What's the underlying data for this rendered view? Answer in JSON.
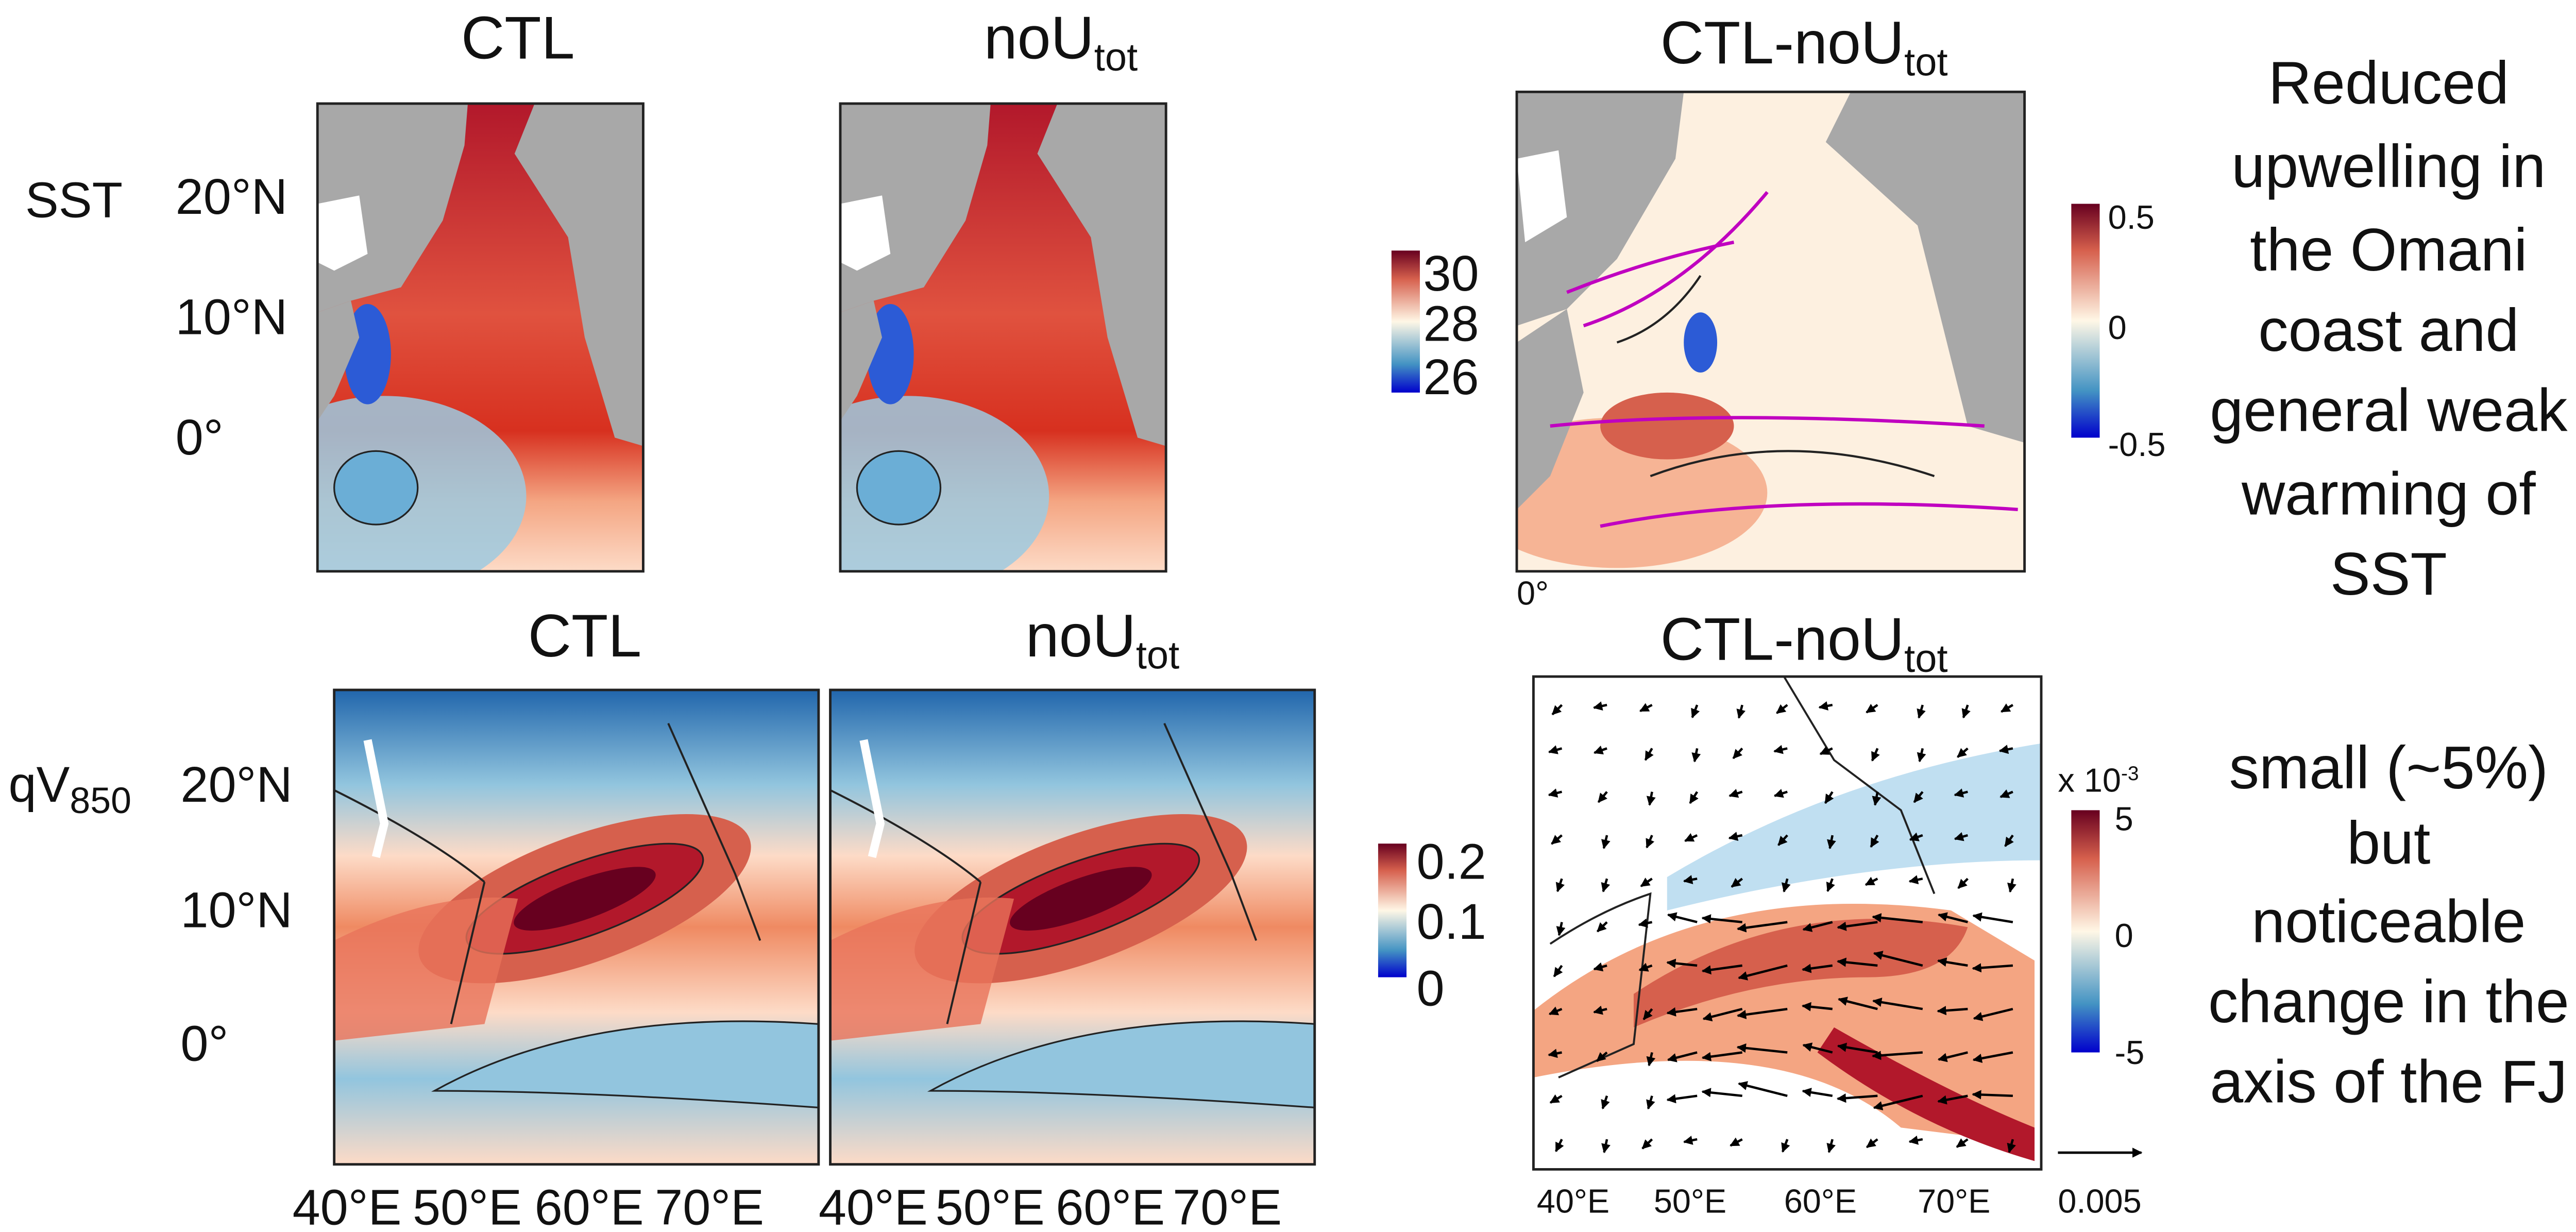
{
  "rows": [
    {
      "label": {
        "main": "SST"
      },
      "panel_titles": [
        {
          "main": "CTL"
        },
        {
          "main": "noU",
          "sub": "tot"
        },
        {
          "main": "CTL-noU",
          "sub": "tot"
        }
      ],
      "lat_labels": [
        "20°N",
        "10°N",
        "0°"
      ],
      "colorbar": [
        "30",
        "28",
        "26"
      ],
      "diff_colorbar": [
        "0.5",
        "0",
        "-0.5"
      ],
      "diff_lon_labels": [
        "0°"
      ],
      "annotation": [
        "Reduced",
        "upwelling in",
        "the Omani",
        "coast and",
        "general weak",
        "warming of",
        "SST"
      ]
    },
    {
      "label": {
        "main": "qV",
        "sub": "850"
      },
      "panel_titles": [
        {
          "main": "CTL"
        },
        {
          "main": "noU",
          "sub": "tot"
        },
        {
          "main": "CTL-noU",
          "sub": "tot"
        }
      ],
      "lat_labels": [
        "20°N",
        "10°N",
        "0°"
      ],
      "lon_labels": [
        "40°E",
        "50°E",
        "60°E",
        "70°E"
      ],
      "colorbar": [
        "0.2",
        "0.1",
        "0"
      ],
      "diff_colorbar_scale": {
        "main": "x 10",
        "sup": "-3"
      },
      "diff_colorbar": [
        "5",
        "0",
        "-5"
      ],
      "diff_lon_labels": [
        "40°E",
        "50°E",
        "60°E",
        "70°E"
      ],
      "vector_scale": "0.005",
      "annotation": [
        "small (~5%)",
        "but",
        "noticeable",
        "change in the",
        "axis of the FJ"
      ]
    }
  ]
}
